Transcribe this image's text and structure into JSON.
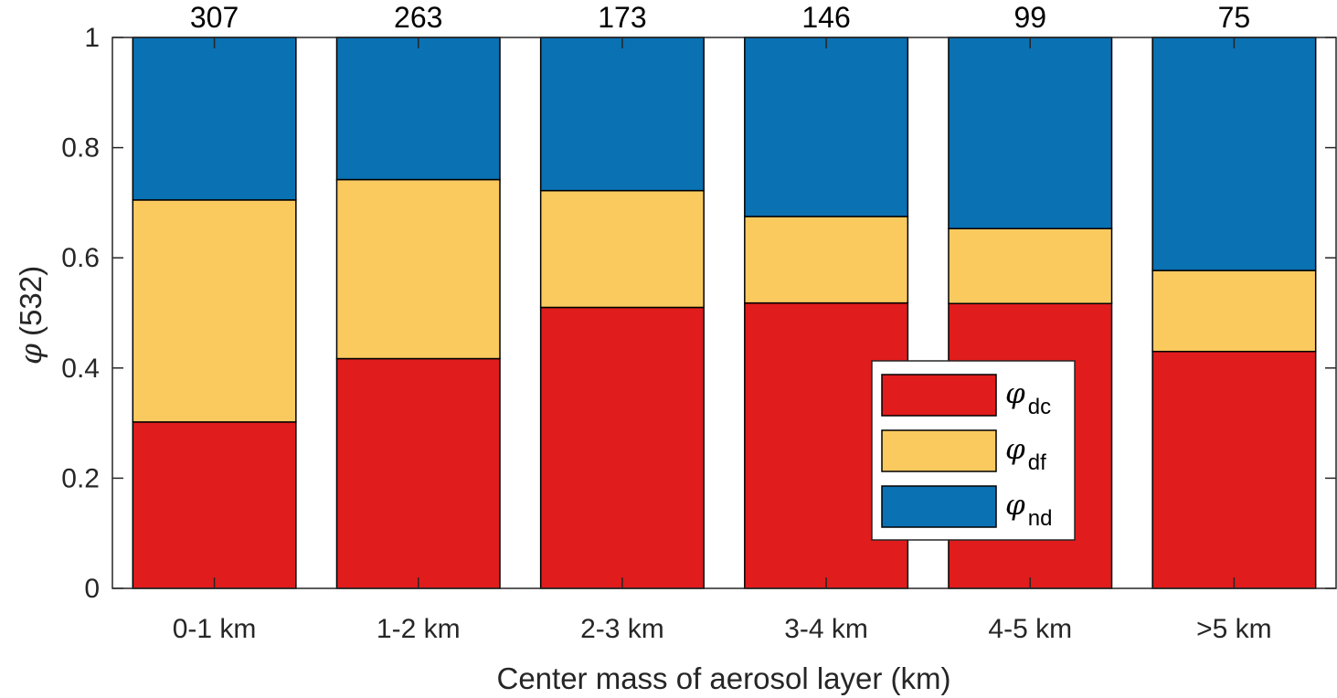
{
  "chart_data": {
    "type": "bar",
    "stacked": true,
    "title": "",
    "xlabel": "Center mass of aerosol layer (km)",
    "ylabel": "(532)",
    "ylabel_symbol": "φ",
    "categories": [
      "0-1 km",
      "1-2 km",
      "2-3 km",
      "3-4 km",
      "4-5 km",
      ">5 km"
    ],
    "bar_counts": [
      "307",
      "263",
      "173",
      "146",
      "99",
      "75"
    ],
    "ylim": [
      0,
      1
    ],
    "yticks": [
      "0",
      "0.2",
      "0.4",
      "0.6",
      "0.8",
      "1"
    ],
    "ytick_values": [
      0,
      0.2,
      0.4,
      0.6,
      0.8,
      1
    ],
    "grid": false,
    "legend_position": "lower-right",
    "series": [
      {
        "name": "φdc",
        "symbol": "φ",
        "subscript": "dc",
        "color": "#E11C1C",
        "values": [
          0.302,
          0.417,
          0.51,
          0.518,
          0.517,
          0.43
        ]
      },
      {
        "name": "φdf",
        "symbol": "φ",
        "subscript": "df",
        "color": "#FBCA5F",
        "values": [
          0.403,
          0.325,
          0.212,
          0.157,
          0.136,
          0.147
        ]
      },
      {
        "name": "φnd",
        "symbol": "φ",
        "subscript": "nd",
        "color": "#0A71B3",
        "values": [
          0.295,
          0.258,
          0.278,
          0.325,
          0.347,
          0.423
        ]
      }
    ]
  }
}
